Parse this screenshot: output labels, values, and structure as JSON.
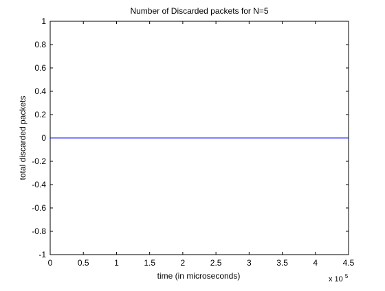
{
  "chart_data": {
    "type": "line",
    "title": "Number of Discarded packets for N=5",
    "xlabel": "time (in microseconds)",
    "ylabel": "total discarded packets",
    "x_exponent_base": "x 10",
    "x_exponent_power": "5",
    "xlim": [
      0,
      4.5
    ],
    "ylim": [
      -1,
      1
    ],
    "x_ticks": [
      0,
      0.5,
      1,
      1.5,
      2,
      2.5,
      3,
      3.5,
      4,
      4.5
    ],
    "x_tick_labels": [
      "0",
      "0.5",
      "1",
      "1.5",
      "2",
      "2.5",
      "3",
      "3.5",
      "4",
      "4.5"
    ],
    "y_ticks": [
      1,
      0.8,
      0.6,
      0.4,
      0.2,
      0,
      -0.2,
      -0.4,
      -0.6,
      -0.8,
      -1
    ],
    "y_tick_labels": [
      "1",
      "0.8",
      "0.6",
      "0.4",
      "0.2",
      "0",
      "-0.2",
      "-0.4",
      "-0.6",
      "-0.8",
      "-1"
    ],
    "grid": false,
    "series": [
      {
        "x": [
          0,
          4.5
        ],
        "y": [
          0,
          0
        ],
        "color": "#0000ff"
      }
    ]
  }
}
